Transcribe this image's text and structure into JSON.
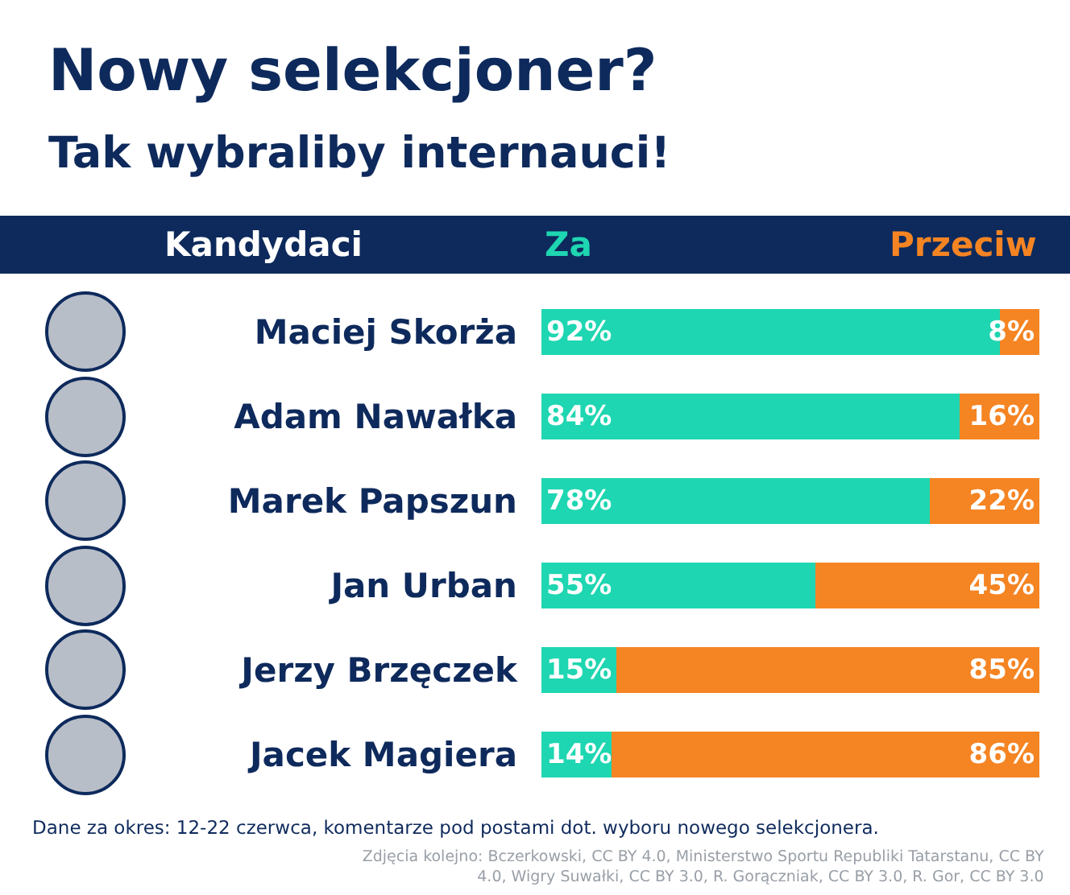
{
  "chart_data": {
    "type": "bar",
    "orientation": "horizontal",
    "stacked": true,
    "title": "Nowy selekcjoner?",
    "subtitle": "Tak wybraliby internauci!",
    "ylabel": "Kandydaci",
    "categories": [
      "Maciej Skorża",
      "Adam Nawałka",
      "Marek Papszun",
      "Jan Urban",
      "Jerzy Brzęczek",
      "Jacek Magiera"
    ],
    "series": [
      {
        "name": "Za",
        "color": "#1ed6b1",
        "values": [
          92,
          84,
          78,
          55,
          15,
          14
        ],
        "value_labels": [
          "92%",
          "84%",
          "78%",
          "55%",
          "15%",
          "14%"
        ]
      },
      {
        "name": "Przeciw",
        "color": "#f58423",
        "values": [
          8,
          16,
          22,
          45,
          85,
          86
        ],
        "value_labels": [
          "8%",
          "16%",
          "22%",
          "45%",
          "85%",
          "86%"
        ]
      }
    ],
    "xlim": [
      0,
      100
    ],
    "tick_labels": "y",
    "annotations": [
      "Dane za okres: 12-22 czerwca, komentarze pod postami dot. wyboru nowego selekcjonera.",
      "Zdjęcia kolejno: Bczerkowski, CC BY 4.0, Ministerstwo Sportu Republiki Tatarstanu, CC BY 4.0, Wigry Suwałki, CC BY 3.0, R. Gorączniak, CC BY 3.0, R. Gor, CC BY 3.0"
    ]
  }
}
